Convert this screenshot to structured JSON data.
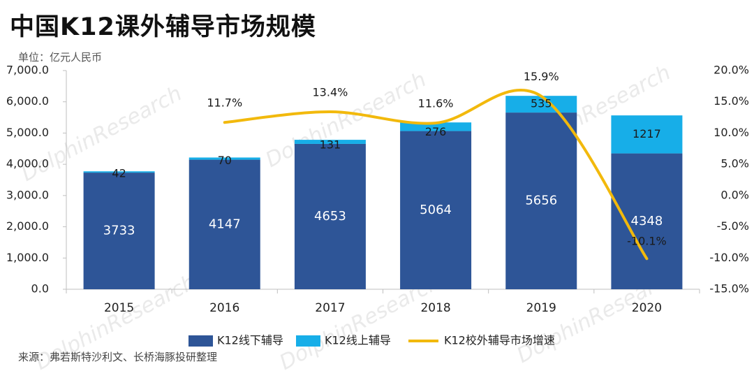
{
  "title": "中国K12课外辅导市场规模",
  "unit": "单位：亿元人民币",
  "source": "来源：弗若斯特沙利文、长桥海豚投研整理",
  "watermark": "DolphinResearch",
  "colors": {
    "offline": "#2e5597",
    "online": "#17aee8",
    "growth": "#f2b90c"
  },
  "chart_data": {
    "type": "bar",
    "stacked": true,
    "categories": [
      "2015",
      "2016",
      "2017",
      "2018",
      "2019",
      "2020"
    ],
    "series": [
      {
        "name": "K12线下辅导",
        "type": "bar",
        "values": [
          3733,
          4147,
          4653,
          5064,
          5656,
          4348
        ]
      },
      {
        "name": "K12线上辅导",
        "type": "bar",
        "values": [
          42,
          70,
          131,
          276,
          535,
          1217
        ]
      },
      {
        "name": "K12校外辅导市场增速",
        "type": "line",
        "axis": "right",
        "values": [
          null,
          11.7,
          13.4,
          11.6,
          15.9,
          -10.1
        ]
      }
    ],
    "data_labels": {
      "offline": [
        "3733",
        "4147",
        "4653",
        "5064",
        "5656",
        "4348"
      ],
      "online": [
        "42",
        "70",
        "131",
        "276",
        "535",
        "1217"
      ],
      "growth": [
        "",
        "11.7%",
        "13.4%",
        "11.6%",
        "15.9%",
        "-10.1%"
      ]
    },
    "ylim_left": [
      0,
      7000
    ],
    "yticks_left": [
      0,
      1000,
      2000,
      3000,
      4000,
      5000,
      6000,
      7000
    ],
    "ytick_labels_left": [
      "0.0",
      "1,000.0",
      "2,000.0",
      "3,000.0",
      "4,000.0",
      "5,000.0",
      "6,000.0",
      "7,000.0"
    ],
    "ylim_right": [
      -15,
      20
    ],
    "yticks_right": [
      -15,
      -10,
      -5,
      0,
      5,
      10,
      15,
      20
    ],
    "ytick_labels_right": [
      "-15.0%",
      "-10.0%",
      "-5.0%",
      "0.0%",
      "5.0%",
      "10.0%",
      "15.0%",
      "20.0%"
    ],
    "grid": false,
    "legend_position": "bottom"
  }
}
